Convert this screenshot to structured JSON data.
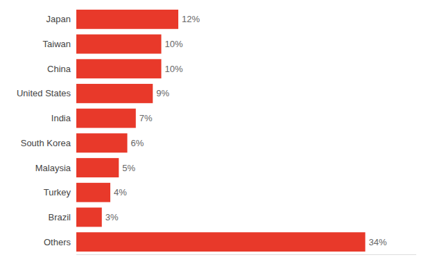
{
  "chart_data": {
    "type": "bar",
    "orientation": "horizontal",
    "categories": [
      "Japan",
      "Taiwan",
      "China",
      "United States",
      "India",
      "South Korea",
      "Malaysia",
      "Turkey",
      "Brazil",
      "Others"
    ],
    "values": [
      12,
      10,
      10,
      9,
      7,
      6,
      5,
      4,
      3,
      34
    ],
    "value_labels": [
      "12%",
      "10%",
      "10%",
      "9%",
      "7%",
      "6%",
      "5%",
      "4%",
      "3%",
      "34%"
    ],
    "color": "#e8392a",
    "xlim": [
      0,
      40
    ],
    "data_labels": true,
    "tick_labels": "y"
  }
}
